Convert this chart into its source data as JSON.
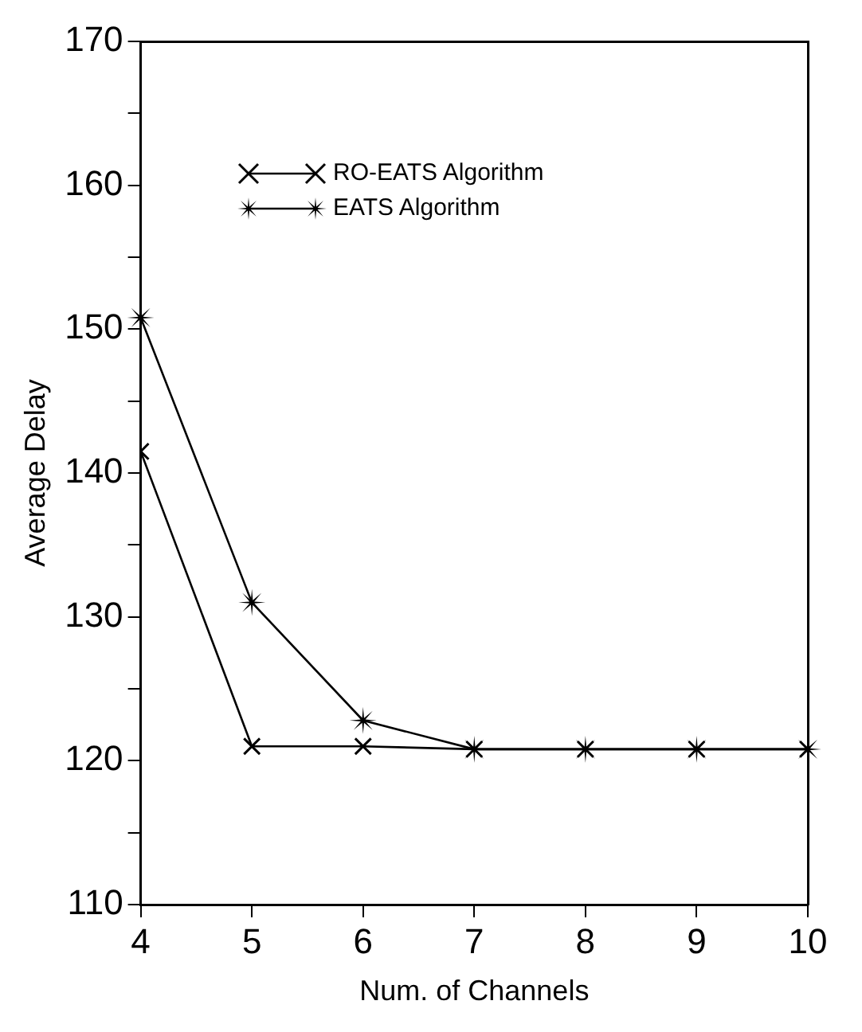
{
  "chart_data": {
    "type": "line",
    "xlabel": "Num. of Channels",
    "ylabel": "Average Delay",
    "x": [
      4,
      5,
      6,
      7,
      8,
      9,
      10
    ],
    "series": [
      {
        "name": "RO-EATS Algorithm",
        "color": "#000000",
        "marker": "cross",
        "values": [
          141.5,
          121,
          121,
          120.8,
          120.8,
          120.8,
          120.8
        ]
      },
      {
        "name": "EATS Algorithm",
        "color": "#000000",
        "marker": "star",
        "values": [
          150.8,
          131,
          122.8,
          120.8,
          120.8,
          120.8,
          120.8
        ]
      }
    ],
    "xlim": [
      4,
      10
    ],
    "xticks": [
      4,
      5,
      6,
      7,
      8,
      9,
      10
    ],
    "ylim": [
      110,
      170
    ],
    "yticks": [
      110,
      {
        "value": 115,
        "label": null
      },
      120,
      {
        "value": 125,
        "label": null
      },
      130,
      {
        "value": 135,
        "label": null
      },
      140,
      {
        "value": 145,
        "label": null
      },
      150,
      {
        "value": 155,
        "label": null
      },
      160,
      {
        "value": 165,
        "label": null
      },
      170
    ],
    "grid": false,
    "legend": "top left",
    "line_style": "solid"
  }
}
